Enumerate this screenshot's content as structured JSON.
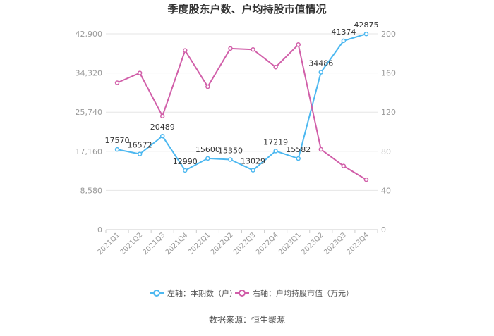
{
  "chart_data": {
    "type": "line",
    "title": "季度股东户数、户均持股市值情况",
    "categories": [
      "2021Q1",
      "2021Q2",
      "2021Q3",
      "2021Q4",
      "2022Q1",
      "2022Q2",
      "2022Q3",
      "2022Q4",
      "2023Q1",
      "2023Q2",
      "2023Q3",
      "2023Q4"
    ],
    "series": [
      {
        "name": "左轴：本期数（户）",
        "axis": "left",
        "color": "#4db8f0",
        "values": [
          17570,
          16572,
          20489,
          12990,
          15600,
          15350,
          13029,
          17219,
          15582,
          34486,
          41374,
          42875
        ],
        "show_labels": true
      },
      {
        "name": "右轴：户均持股市值（万元）",
        "axis": "right",
        "color": "#d15fa9",
        "values": [
          150,
          160,
          116,
          183,
          146,
          185,
          184,
          166,
          189,
          82,
          65,
          51
        ],
        "show_labels": false
      }
    ],
    "y_left": {
      "min": 0,
      "max": 42900,
      "ticks": [
        0,
        8580,
        17160,
        25740,
        34320,
        42900
      ],
      "tick_labels": [
        "0",
        "8,580",
        "17,160",
        "25,740",
        "34,320",
        "42,900"
      ]
    },
    "y_right": {
      "min": 0,
      "max": 200,
      "ticks": [
        0,
        40,
        80,
        120,
        160,
        200
      ],
      "tick_labels": [
        "0",
        "40",
        "80",
        "120",
        "160",
        "200"
      ]
    },
    "grid": true,
    "legend_position": "bottom",
    "source": "数据来源：恒生聚源"
  }
}
